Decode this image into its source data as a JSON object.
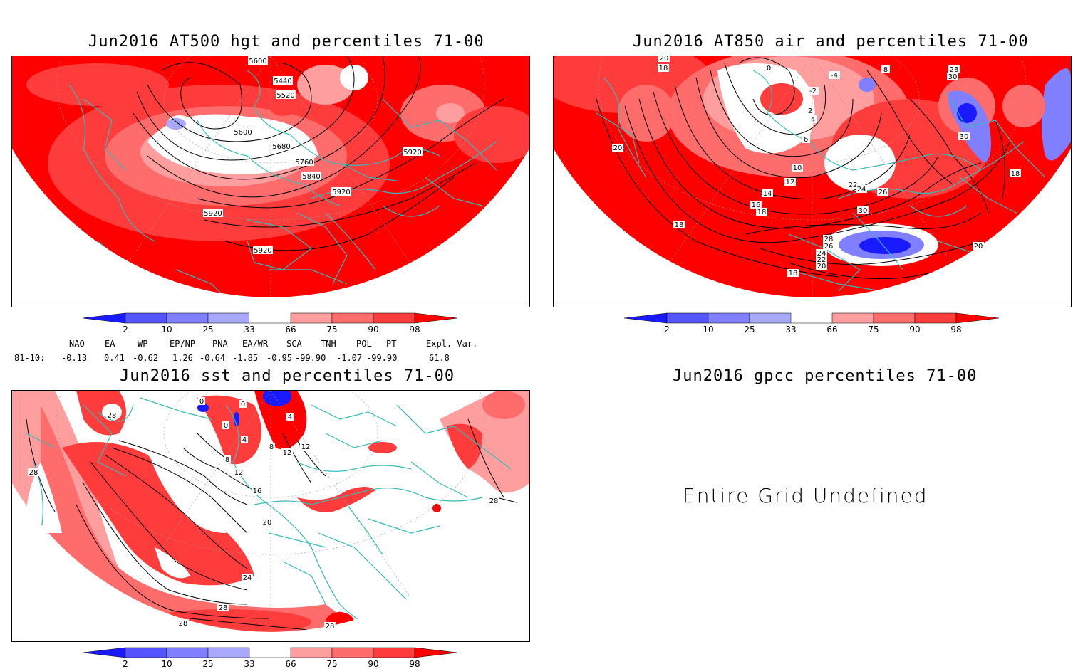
{
  "panels": [
    {
      "id": "hgt500",
      "title": "Jun2016 AT500 hgt and percentiles 71-00",
      "contour_labels": [
        "5600",
        "5440",
        "5520",
        "5600",
        "5680",
        "5760",
        "5840",
        "5920",
        "5920",
        "5920",
        "5920"
      ]
    },
    {
      "id": "air850",
      "title": "Jun2016 AT850 air and percentiles 71-00",
      "contour_labels": [
        "20",
        "18",
        "0",
        "-4",
        "8",
        "28",
        "30",
        "-2",
        "2",
        "4",
        "6",
        "30",
        "20",
        "10",
        "12",
        "14",
        "16",
        "18",
        "22",
        "24",
        "26",
        "30",
        "18",
        "18",
        "28",
        "26",
        "24",
        "22",
        "20",
        "18",
        "20"
      ]
    },
    {
      "id": "sst",
      "title": "Jun2016 sst and percentiles 71-00",
      "contour_labels": [
        "28",
        "0",
        "0",
        "4",
        "0",
        "4",
        "8",
        "12",
        "12",
        "8",
        "12",
        "16",
        "20",
        "24",
        "28",
        "28",
        "28",
        "28",
        "28"
      ]
    },
    {
      "id": "gpcc",
      "title": "Jun2016 gpcc percentiles 71-00",
      "message": "Entire Grid Undefined"
    }
  ],
  "colorbar": {
    "ticks": [
      "2",
      "10",
      "25",
      "33",
      "66",
      "75",
      "90",
      "98"
    ],
    "colors": {
      "dark_blue": "#1a1aff",
      "blue": "#5555ff",
      "mid_blue": "#7f7fff",
      "light_blue": "#a8a8ff",
      "light_red": "#ff9e9e",
      "pink_red": "#ff6c6c",
      "red": "#ff3c3c",
      "dark_red": "#ff0000"
    }
  },
  "indices": {
    "headers": [
      "NAO",
      "EA",
      "WP",
      "EP/NP",
      "PNA",
      "EA/WR",
      "SCA",
      "TNH",
      "POL",
      "PT",
      "Expl. Var."
    ],
    "row_label": "81-10:",
    "values": [
      "-0.13",
      "0.41",
      "-0.62",
      "1.26",
      "-0.64",
      "-1.85",
      "-0.95",
      "-99.90",
      "-1.07",
      "-99.90",
      "61.8"
    ]
  },
  "colors": {
    "coast": "#33bbbb",
    "contour": "#000000",
    "background": "#ffffff"
  }
}
